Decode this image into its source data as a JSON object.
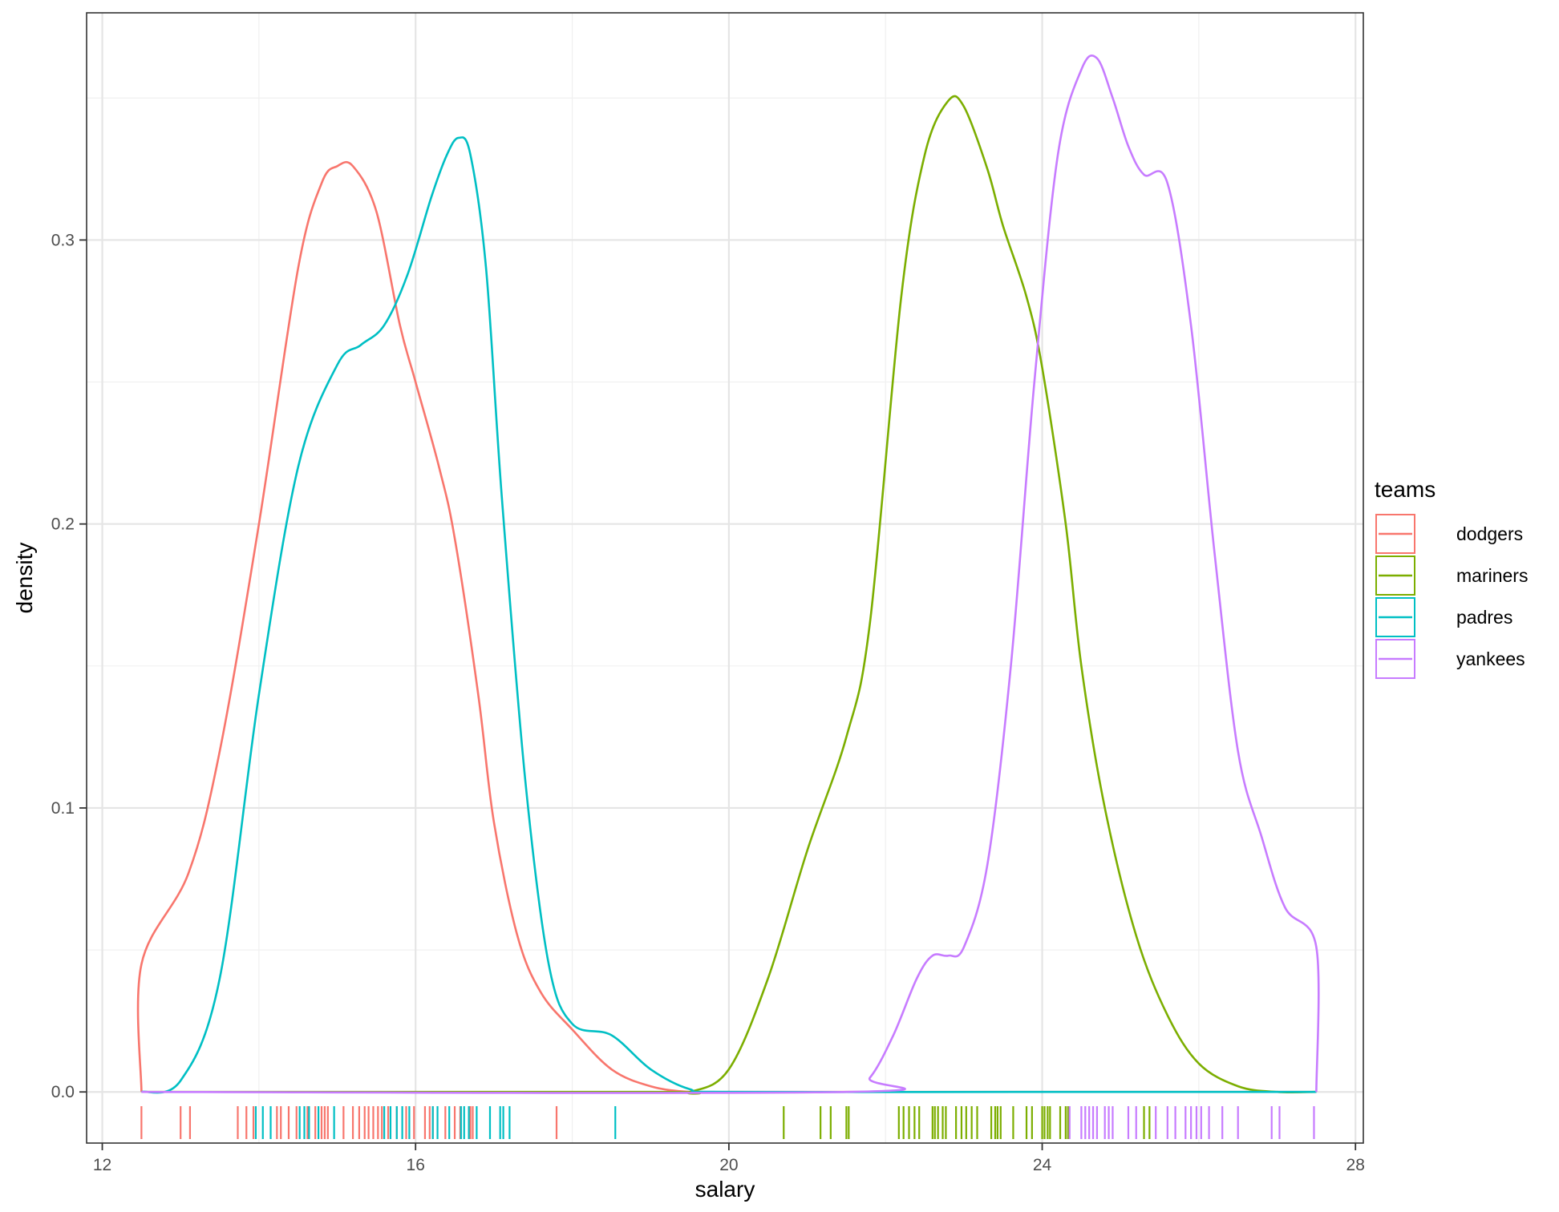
{
  "chart_data": {
    "type": "line",
    "subtype": "density-with-rug",
    "title": "",
    "xlabel": "salary",
    "ylabel": "density",
    "xlim": [
      11.8,
      28.1
    ],
    "ylim": [
      -0.018,
      0.38
    ],
    "x_ticks": [
      12,
      16,
      20,
      24,
      28
    ],
    "x_tick_labels": [
      "12",
      "16",
      "20",
      "24",
      "28"
    ],
    "y_ticks": [
      0.0,
      0.1,
      0.2,
      0.3
    ],
    "y_tick_labels": [
      "0.0",
      "0.1",
      "0.2",
      "0.3"
    ],
    "x_minor": [
      14,
      18,
      22,
      26
    ],
    "y_minor": [
      0.05,
      0.15,
      0.25,
      0.35
    ],
    "grid": true,
    "theme": "bw",
    "legend": {
      "title": "teams",
      "position": "right",
      "entries": [
        "dodgers",
        "mariners",
        "padres",
        "yankees"
      ]
    },
    "series": [
      {
        "name": "dodgers",
        "color": "#F8766D",
        "x": [
          12.5,
          12.5,
          13.1,
          13.5,
          14.0,
          14.5,
          14.8,
          15.0,
          15.2,
          15.5,
          15.8,
          16.0,
          16.3,
          16.5,
          16.8,
          17.0,
          17.3,
          17.6,
          18.0,
          18.5,
          19.0,
          19.5,
          20.0,
          21.0,
          24.0,
          27.5
        ],
        "y": [
          0.0,
          0.045,
          0.077,
          0.12,
          0.2,
          0.29,
          0.32,
          0.326,
          0.326,
          0.31,
          0.27,
          0.25,
          0.22,
          0.195,
          0.14,
          0.095,
          0.055,
          0.035,
          0.022,
          0.008,
          0.002,
          0.0,
          0.0,
          0.0,
          0.0,
          0.0
        ]
      },
      {
        "name": "mariners",
        "color": "#7CAE00",
        "x": [
          12.5,
          19.0,
          19.5,
          20.0,
          20.5,
          21.0,
          21.5,
          21.8,
          22.2,
          22.5,
          22.8,
          23.0,
          23.3,
          23.5,
          23.8,
          24.0,
          24.3,
          24.5,
          24.8,
          25.2,
          25.6,
          26.0,
          26.5,
          27.0,
          27.5
        ],
        "y": [
          0.0,
          0.0,
          0.0,
          0.008,
          0.04,
          0.085,
          0.125,
          0.165,
          0.28,
          0.33,
          0.349,
          0.347,
          0.325,
          0.305,
          0.28,
          0.255,
          0.2,
          0.15,
          0.1,
          0.055,
          0.027,
          0.01,
          0.002,
          0.0,
          0.0
        ]
      },
      {
        "name": "padres",
        "color": "#00BFC4",
        "x": [
          12.5,
          13.0,
          13.5,
          14.0,
          14.5,
          15.0,
          15.3,
          15.6,
          15.9,
          16.2,
          16.4,
          16.55,
          16.7,
          16.9,
          17.1,
          17.4,
          17.7,
          18.0,
          18.5,
          19.0,
          19.5,
          20.0,
          24.0,
          27.5
        ],
        "y": [
          0.0,
          0.004,
          0.04,
          0.14,
          0.22,
          0.256,
          0.263,
          0.27,
          0.288,
          0.315,
          0.33,
          0.336,
          0.33,
          0.29,
          0.21,
          0.11,
          0.045,
          0.024,
          0.02,
          0.008,
          0.001,
          0.0,
          0.0,
          0.0
        ]
      },
      {
        "name": "yankees",
        "color": "#C77CFF",
        "x": [
          12.5,
          21.5,
          21.8,
          22.1,
          22.4,
          22.6,
          22.8,
          23.0,
          23.3,
          23.6,
          23.9,
          24.2,
          24.5,
          24.7,
          24.9,
          25.1,
          25.3,
          25.6,
          25.9,
          26.2,
          26.5,
          26.8,
          27.1,
          27.5,
          27.5
        ],
        "y": [
          0.0,
          0.0,
          0.005,
          0.02,
          0.04,
          0.048,
          0.048,
          0.051,
          0.08,
          0.15,
          0.25,
          0.33,
          0.36,
          0.364,
          0.35,
          0.333,
          0.323,
          0.32,
          0.27,
          0.19,
          0.12,
          0.09,
          0.065,
          0.051,
          0.0
        ]
      }
    ],
    "rug": [
      {
        "name": "dodgers",
        "values": [
          12.5,
          13.0,
          13.12,
          13.73,
          13.84,
          13.93,
          14.23,
          14.28,
          14.38,
          14.48,
          14.62,
          14.72,
          14.8,
          14.84,
          14.88,
          15.08,
          15.2,
          15.28,
          15.35,
          15.4,
          15.46,
          15.52,
          15.57,
          15.65,
          15.76,
          15.88,
          15.98,
          16.12,
          16.18,
          16.22,
          16.38,
          16.5,
          16.57,
          16.7,
          16.73,
          17.8
        ]
      },
      {
        "name": "mariners",
        "values": [
          20.7,
          21.17,
          21.3,
          21.5,
          21.53,
          22.17,
          22.23,
          22.3,
          22.37,
          22.43,
          22.6,
          22.63,
          22.67,
          22.73,
          22.77,
          22.9,
          22.97,
          23.03,
          23.1,
          23.17,
          23.35,
          23.4,
          23.43,
          23.47,
          23.63,
          23.8,
          23.87,
          24.0,
          24.03,
          24.07,
          24.1,
          24.23,
          24.3,
          24.33,
          25.3,
          25.37
        ]
      },
      {
        "name": "padres",
        "values": [
          13.96,
          14.05,
          14.15,
          14.52,
          14.58,
          14.64,
          14.76,
          14.96,
          15.6,
          15.68,
          15.76,
          15.83,
          15.92,
          16.22,
          16.28,
          16.43,
          16.58,
          16.62,
          16.68,
          16.78,
          16.95,
          17.08,
          17.12,
          17.2,
          18.55
        ]
      },
      {
        "name": "yankees",
        "values": [
          24.35,
          24.5,
          24.55,
          24.6,
          24.65,
          24.7,
          24.8,
          24.85,
          24.9,
          25.1,
          25.2,
          25.45,
          25.6,
          25.7,
          25.83,
          25.9,
          25.97,
          26.03,
          26.13,
          26.3,
          26.5,
          26.93,
          27.03,
          27.47
        ]
      }
    ]
  }
}
